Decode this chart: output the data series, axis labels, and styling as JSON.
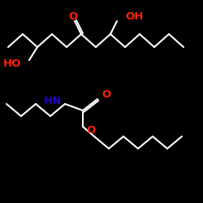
{
  "background": "#000000",
  "bond_color": "#ffffff",
  "bond_width": 1.5,
  "label_O_carbonyl": "O",
  "label_OH": "OH",
  "label_HO": "HO",
  "label_NH": "HN",
  "label_O_carbamate": "O",
  "label_O_ester": "O",
  "color_red": "#ff2200",
  "color_blue": "#2200cc",
  "fontsize": 9.5
}
